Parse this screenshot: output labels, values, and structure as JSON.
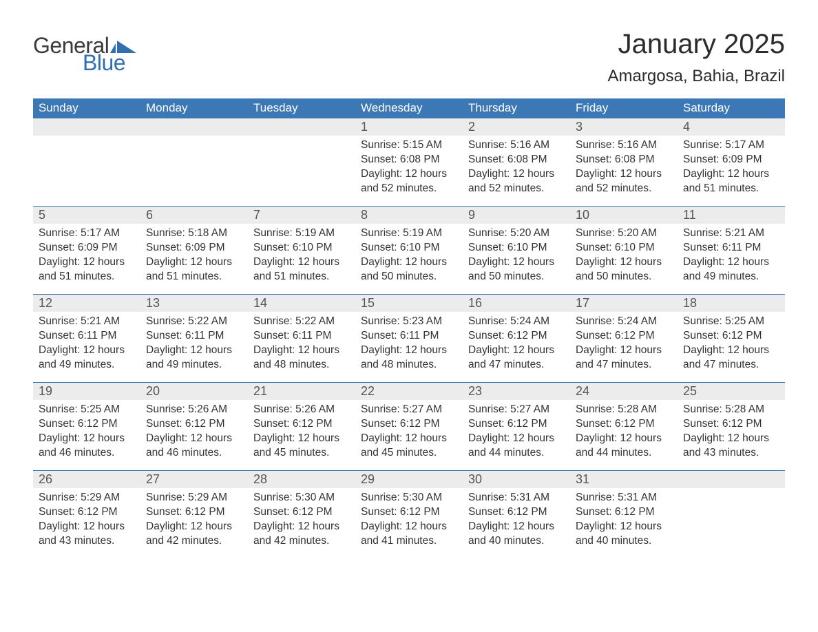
{
  "brand": {
    "word1": "General",
    "word2": "Blue"
  },
  "title": "January 2025",
  "location": "Amargosa, Bahia, Brazil",
  "colors": {
    "header_bg": "#3b78b5",
    "header_text": "#ffffff",
    "daynum_bg": "#ececec",
    "daynum_border": "#3b78b5",
    "body_bg": "#ffffff",
    "text": "#333333",
    "logo_gray": "#3a3a3a",
    "logo_blue": "#2f6fb0"
  },
  "weekdays": [
    "Sunday",
    "Monday",
    "Tuesday",
    "Wednesday",
    "Thursday",
    "Friday",
    "Saturday"
  ],
  "labels": {
    "sunrise": "Sunrise: ",
    "sunset": "Sunset: ",
    "daylight": "Daylight: "
  },
  "weeks": [
    [
      null,
      null,
      null,
      {
        "n": "1",
        "sunrise": "5:15 AM",
        "sunset": "6:08 PM",
        "daylight": "12 hours and 52 minutes."
      },
      {
        "n": "2",
        "sunrise": "5:16 AM",
        "sunset": "6:08 PM",
        "daylight": "12 hours and 52 minutes."
      },
      {
        "n": "3",
        "sunrise": "5:16 AM",
        "sunset": "6:08 PM",
        "daylight": "12 hours and 52 minutes."
      },
      {
        "n": "4",
        "sunrise": "5:17 AM",
        "sunset": "6:09 PM",
        "daylight": "12 hours and 51 minutes."
      }
    ],
    [
      {
        "n": "5",
        "sunrise": "5:17 AM",
        "sunset": "6:09 PM",
        "daylight": "12 hours and 51 minutes."
      },
      {
        "n": "6",
        "sunrise": "5:18 AM",
        "sunset": "6:09 PM",
        "daylight": "12 hours and 51 minutes."
      },
      {
        "n": "7",
        "sunrise": "5:19 AM",
        "sunset": "6:10 PM",
        "daylight": "12 hours and 51 minutes."
      },
      {
        "n": "8",
        "sunrise": "5:19 AM",
        "sunset": "6:10 PM",
        "daylight": "12 hours and 50 minutes."
      },
      {
        "n": "9",
        "sunrise": "5:20 AM",
        "sunset": "6:10 PM",
        "daylight": "12 hours and 50 minutes."
      },
      {
        "n": "10",
        "sunrise": "5:20 AM",
        "sunset": "6:10 PM",
        "daylight": "12 hours and 50 minutes."
      },
      {
        "n": "11",
        "sunrise": "5:21 AM",
        "sunset": "6:11 PM",
        "daylight": "12 hours and 49 minutes."
      }
    ],
    [
      {
        "n": "12",
        "sunrise": "5:21 AM",
        "sunset": "6:11 PM",
        "daylight": "12 hours and 49 minutes."
      },
      {
        "n": "13",
        "sunrise": "5:22 AM",
        "sunset": "6:11 PM",
        "daylight": "12 hours and 49 minutes."
      },
      {
        "n": "14",
        "sunrise": "5:22 AM",
        "sunset": "6:11 PM",
        "daylight": "12 hours and 48 minutes."
      },
      {
        "n": "15",
        "sunrise": "5:23 AM",
        "sunset": "6:11 PM",
        "daylight": "12 hours and 48 minutes."
      },
      {
        "n": "16",
        "sunrise": "5:24 AM",
        "sunset": "6:12 PM",
        "daylight": "12 hours and 47 minutes."
      },
      {
        "n": "17",
        "sunrise": "5:24 AM",
        "sunset": "6:12 PM",
        "daylight": "12 hours and 47 minutes."
      },
      {
        "n": "18",
        "sunrise": "5:25 AM",
        "sunset": "6:12 PM",
        "daylight": "12 hours and 47 minutes."
      }
    ],
    [
      {
        "n": "19",
        "sunrise": "5:25 AM",
        "sunset": "6:12 PM",
        "daylight": "12 hours and 46 minutes."
      },
      {
        "n": "20",
        "sunrise": "5:26 AM",
        "sunset": "6:12 PM",
        "daylight": "12 hours and 46 minutes."
      },
      {
        "n": "21",
        "sunrise": "5:26 AM",
        "sunset": "6:12 PM",
        "daylight": "12 hours and 45 minutes."
      },
      {
        "n": "22",
        "sunrise": "5:27 AM",
        "sunset": "6:12 PM",
        "daylight": "12 hours and 45 minutes."
      },
      {
        "n": "23",
        "sunrise": "5:27 AM",
        "sunset": "6:12 PM",
        "daylight": "12 hours and 44 minutes."
      },
      {
        "n": "24",
        "sunrise": "5:28 AM",
        "sunset": "6:12 PM",
        "daylight": "12 hours and 44 minutes."
      },
      {
        "n": "25",
        "sunrise": "5:28 AM",
        "sunset": "6:12 PM",
        "daylight": "12 hours and 43 minutes."
      }
    ],
    [
      {
        "n": "26",
        "sunrise": "5:29 AM",
        "sunset": "6:12 PM",
        "daylight": "12 hours and 43 minutes."
      },
      {
        "n": "27",
        "sunrise": "5:29 AM",
        "sunset": "6:12 PM",
        "daylight": "12 hours and 42 minutes."
      },
      {
        "n": "28",
        "sunrise": "5:30 AM",
        "sunset": "6:12 PM",
        "daylight": "12 hours and 42 minutes."
      },
      {
        "n": "29",
        "sunrise": "5:30 AM",
        "sunset": "6:12 PM",
        "daylight": "12 hours and 41 minutes."
      },
      {
        "n": "30",
        "sunrise": "5:31 AM",
        "sunset": "6:12 PM",
        "daylight": "12 hours and 40 minutes."
      },
      {
        "n": "31",
        "sunrise": "5:31 AM",
        "sunset": "6:12 PM",
        "daylight": "12 hours and 40 minutes."
      },
      null
    ]
  ]
}
